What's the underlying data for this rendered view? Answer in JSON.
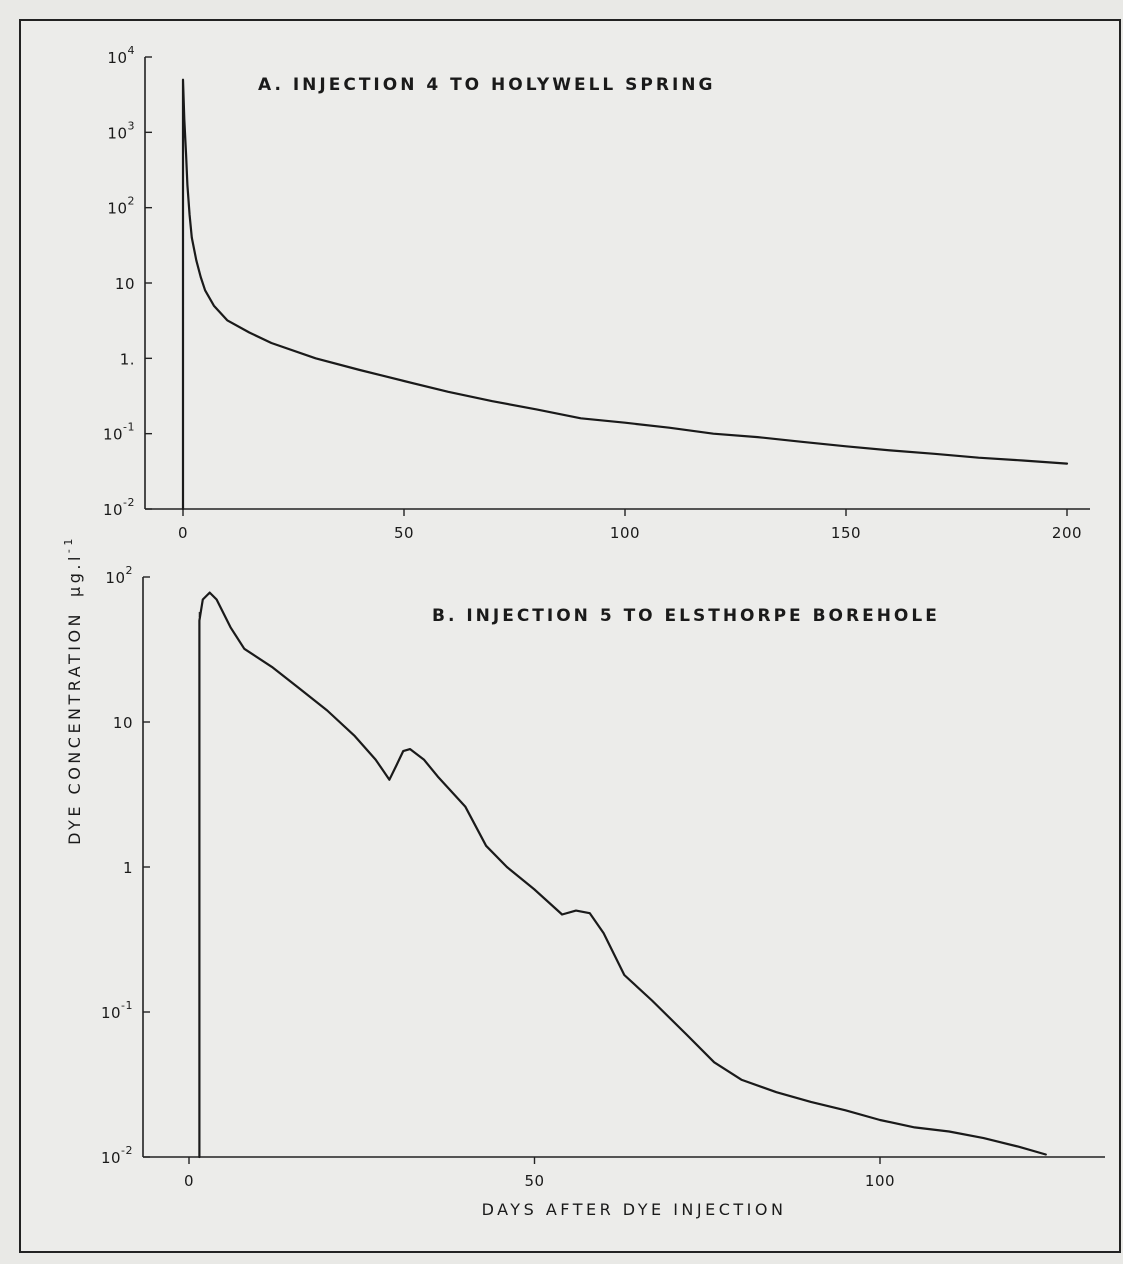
{
  "chart_data": [
    {
      "type": "line",
      "title": "A. INJECTION 4 TO HOLYWELL SPRING",
      "yscale": "log",
      "ylim": [
        0.01,
        10000
      ],
      "xlim": [
        -8,
        205
      ],
      "x_ticks": [
        {
          "value": 0,
          "label": "0"
        },
        {
          "value": 50,
          "label": "50"
        },
        {
          "value": 100,
          "label": "100"
        },
        {
          "value": 150,
          "label": "150"
        },
        {
          "value": 200,
          "label": "200"
        }
      ],
      "y_ticks": [
        {
          "value": 10000,
          "base": "10",
          "exp": "4"
        },
        {
          "value": 1000,
          "base": "10",
          "exp": "3"
        },
        {
          "value": 100,
          "base": "10",
          "exp": "2"
        },
        {
          "value": 10,
          "base": "10",
          "exp": ""
        },
        {
          "value": 1,
          "base": "1.",
          "exp": ""
        },
        {
          "value": 0.1,
          "base": "10",
          "exp": "-1"
        },
        {
          "value": 0.01,
          "base": "10",
          "exp": "-2"
        }
      ],
      "injection_marker_day": 0,
      "series": [
        {
          "points": [
            [
              0,
              0.01
            ],
            [
              0,
              5000
            ],
            [
              0.3,
              1500
            ],
            [
              0.7,
              500
            ],
            [
              1,
              200
            ],
            [
              1.5,
              80
            ],
            [
              2,
              40
            ],
            [
              3,
              20
            ],
            [
              4,
              12
            ],
            [
              5,
              8
            ],
            [
              7,
              5
            ],
            [
              10,
              3.2
            ],
            [
              15,
              2.2
            ],
            [
              20,
              1.6
            ],
            [
              30,
              1.0
            ],
            [
              40,
              0.7
            ],
            [
              50,
              0.5
            ],
            [
              60,
              0.36
            ],
            [
              70,
              0.27
            ],
            [
              80,
              0.21
            ],
            [
              90,
              0.16
            ],
            [
              100,
              0.14
            ],
            [
              110,
              0.12
            ],
            [
              120,
              0.1
            ],
            [
              130,
              0.09
            ],
            [
              140,
              0.078
            ],
            [
              150,
              0.068
            ],
            [
              160,
              0.06
            ],
            [
              170,
              0.054
            ],
            [
              180,
              0.048
            ],
            [
              190,
              0.044
            ],
            [
              200,
              0.04
            ]
          ]
        }
      ]
    },
    {
      "type": "line",
      "title": "B. INJECTION 5 TO ELSTHORPE BOREHOLE",
      "yscale": "log",
      "ylim": [
        0.01,
        100
      ],
      "xlim": [
        -7,
        132
      ],
      "xlabel": "DAYS AFTER DYE INJECTION",
      "x_ticks": [
        {
          "value": 0,
          "label": "0"
        },
        {
          "value": 50,
          "label": "50"
        },
        {
          "value": 100,
          "label": "100"
        }
      ],
      "y_ticks": [
        {
          "value": 100,
          "base": "10",
          "exp": "2"
        },
        {
          "value": 10,
          "base": "10",
          "exp": ""
        },
        {
          "value": 1,
          "base": "1",
          "exp": ""
        },
        {
          "value": 0.1,
          "base": "10",
          "exp": "-1"
        },
        {
          "value": 0.01,
          "base": "10",
          "exp": "-2"
        }
      ],
      "injection_marker_day": 1.5,
      "series": [
        {
          "points": [
            [
              1.5,
              0.01
            ],
            [
              1.5,
              50
            ],
            [
              2,
              70
            ],
            [
              3,
              78
            ],
            [
              4,
              70
            ],
            [
              6,
              45
            ],
            [
              8,
              32
            ],
            [
              12,
              24
            ],
            [
              16,
              17
            ],
            [
              20,
              12
            ],
            [
              24,
              8
            ],
            [
              27,
              5.5
            ],
            [
              29,
              4.0
            ],
            [
              30,
              5.0
            ],
            [
              31,
              6.3
            ],
            [
              32,
              6.5
            ],
            [
              34,
              5.5
            ],
            [
              36,
              4.2
            ],
            [
              40,
              2.6
            ],
            [
              43,
              1.4
            ],
            [
              46,
              1.0
            ],
            [
              50,
              0.7
            ],
            [
              54,
              0.47
            ],
            [
              56,
              0.5
            ],
            [
              58,
              0.48
            ],
            [
              60,
              0.35
            ],
            [
              63,
              0.18
            ],
            [
              67,
              0.12
            ],
            [
              72,
              0.07
            ],
            [
              76,
              0.045
            ],
            [
              80,
              0.034
            ],
            [
              85,
              0.028
            ],
            [
              90,
              0.024
            ],
            [
              95,
              0.021
            ],
            [
              100,
              0.018
            ],
            [
              105,
              0.016
            ],
            [
              110,
              0.015
            ],
            [
              115,
              0.0135
            ],
            [
              120,
              0.0118
            ],
            [
              124,
              0.0104
            ]
          ]
        }
      ]
    }
  ],
  "shared": {
    "ylabel": "DYE CONCENTRATION",
    "ylabel_unit": "µg.l",
    "ylabel_unit_exp": "-1"
  }
}
